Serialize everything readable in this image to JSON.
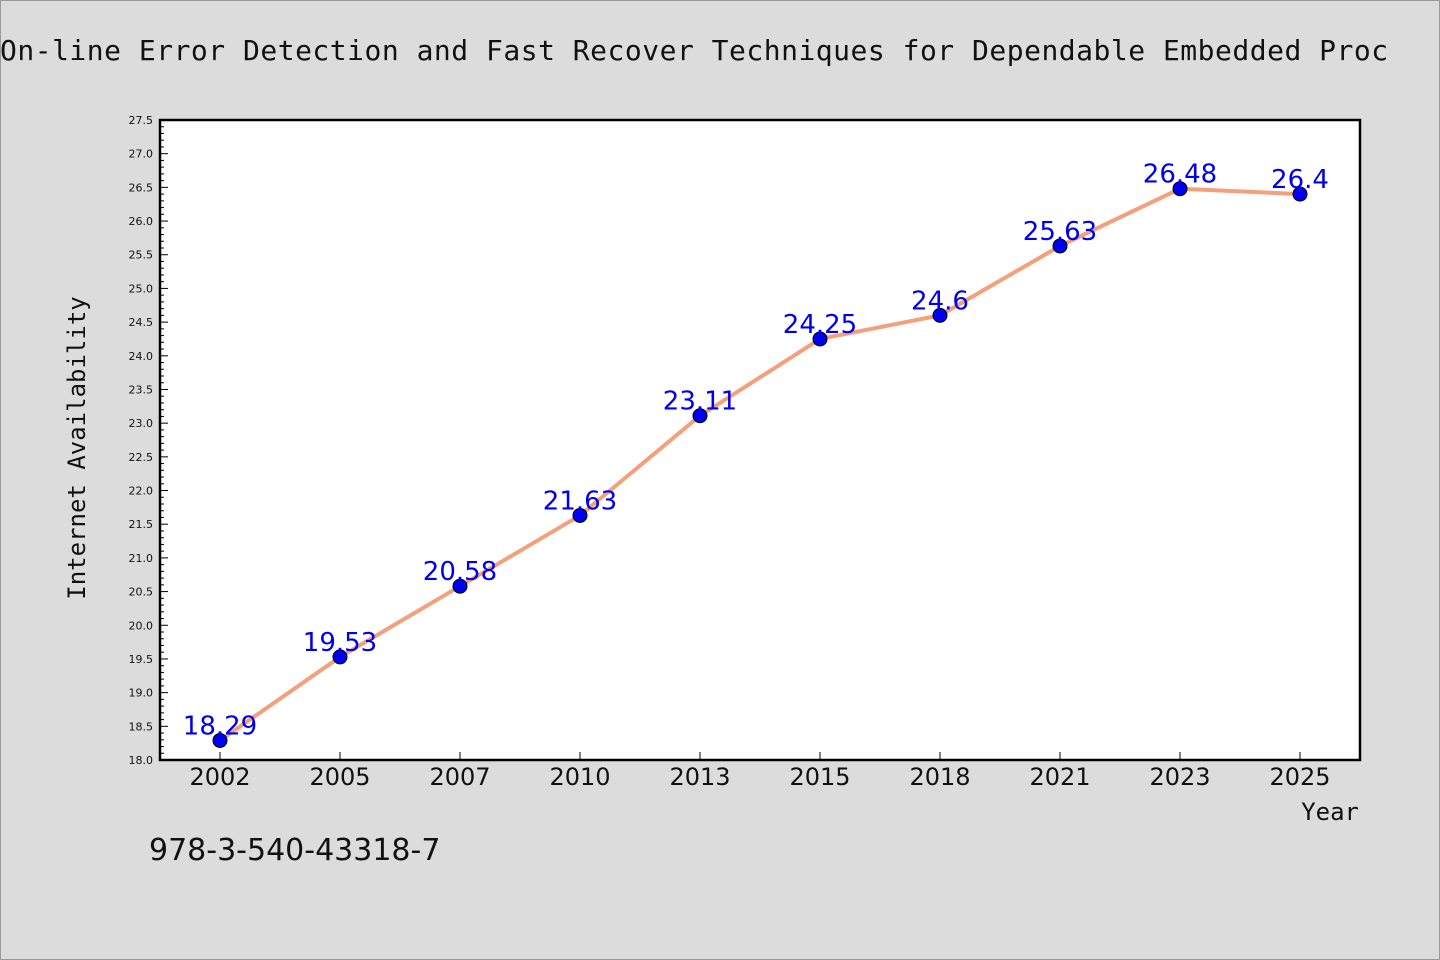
{
  "page": {
    "title": "On-line Error Detection and Fast Recover Techniques for Dependable Embedded Proc",
    "footer_text": "978-3-540-43318-7"
  },
  "colors": {
    "background": "#dcdcdc",
    "plot_background": "#ffffff",
    "line": "#f4a07c",
    "marker": "#0000ee",
    "data_label": "#0000ee"
  },
  "chart_data": {
    "type": "line",
    "title": "On-line Error Detection and Fast Recover Techniques for Dependable Embedded Proc",
    "xlabel": "Year",
    "ylabel": "Internet Availability",
    "categories": [
      "2002",
      "2005",
      "2007",
      "2010",
      "2013",
      "2015",
      "2018",
      "2021",
      "2023",
      "2025"
    ],
    "series": [
      {
        "values": [
          18.29,
          19.53,
          20.58,
          21.63,
          23.11,
          24.25,
          24.6,
          25.63,
          26.48,
          26.4
        ],
        "labels": [
          "18.29",
          "19.53",
          "20.58",
          "21.63",
          "23.11",
          "24.25",
          "24.6",
          "25.63",
          "26.48",
          "26.4"
        ]
      }
    ],
    "ylim": [
      18.0,
      27.5
    ],
    "yticks": [
      "18.0",
      "18.5",
      "19.0",
      "19.5",
      "20.0",
      "20.5",
      "21.0",
      "21.5",
      "22.0",
      "22.5",
      "23.0",
      "23.5",
      "24.0",
      "24.5",
      "25.0",
      "25.5",
      "26.0",
      "26.5",
      "27.0",
      "27.5"
    ],
    "grid": false,
    "legend": "none"
  }
}
